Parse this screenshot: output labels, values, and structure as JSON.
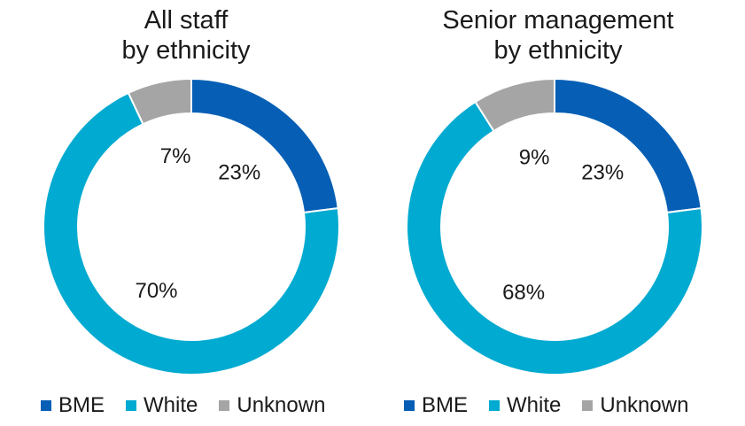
{
  "colors": {
    "BME": "#065fb5",
    "White": "#00aad0",
    "Unknown": "#a5a5a5"
  },
  "chart_data": [
    {
      "type": "pie",
      "subtype": "donut",
      "title": [
        "All staff",
        "by ethnicity"
      ],
      "categories": [
        "BME",
        "White",
        "Unknown"
      ],
      "values": [
        23,
        70,
        7
      ],
      "data_labels": [
        "23%",
        "70%",
        "7%"
      ],
      "legend": [
        "BME",
        "White",
        "Unknown"
      ],
      "legend_position": "bottom"
    },
    {
      "type": "pie",
      "subtype": "donut",
      "title": [
        "Senior management",
        "by ethnicity"
      ],
      "categories": [
        "BME",
        "White",
        "Unknown"
      ],
      "values": [
        23,
        68,
        9
      ],
      "data_labels": [
        "23%",
        "68%",
        "9%"
      ],
      "legend": [
        "BME",
        "White",
        "Unknown"
      ],
      "legend_position": "bottom"
    }
  ]
}
